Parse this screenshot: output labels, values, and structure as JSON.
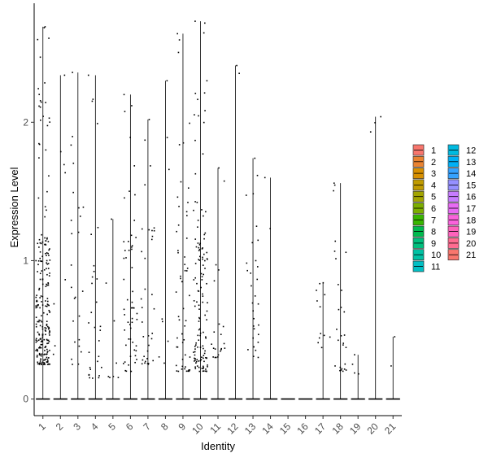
{
  "chart_data": {
    "type": "violin",
    "xlabel": "Identity",
    "ylabel": "Expression Level",
    "ylim": [
      -0.12,
      2.86
    ],
    "yticks": [
      0,
      1,
      2
    ],
    "categories": [
      "1",
      "2",
      "3",
      "4",
      "5",
      "6",
      "7",
      "8",
      "9",
      "10",
      "11",
      "12",
      "13",
      "14",
      "15",
      "16",
      "17",
      "18",
      "19",
      "20",
      "21"
    ],
    "max_values": [
      2.69,
      2.34,
      2.36,
      2.34,
      1.3,
      2.2,
      2.02,
      2.3,
      2.64,
      2.73,
      1.67,
      2.41,
      1.74,
      1.6,
      0.0,
      0.0,
      0.84,
      1.56,
      0.32,
      2.04,
      0.45
    ],
    "nonzero_counts": [
      230,
      8,
      25,
      30,
      8,
      55,
      35,
      8,
      55,
      130,
      22,
      2,
      30,
      2,
      0,
      0,
      12,
      28,
      4,
      3,
      2
    ],
    "dense_range": [
      [
        0.25,
        1.2
      ],
      [
        0.3,
        1.9
      ],
      [
        0.25,
        2.3
      ],
      [
        0.15,
        1.0
      ],
      [
        0.15,
        1.1
      ],
      [
        0.2,
        1.3
      ],
      [
        0.25,
        1.3
      ],
      [
        0.2,
        1.2
      ],
      [
        0.2,
        1.6
      ],
      [
        0.2,
        1.4
      ],
      [
        0.3,
        1.0
      ],
      [
        1.3,
        2.4
      ],
      [
        0.3,
        1.3
      ],
      [
        0.8,
        1.6
      ],
      [
        0,
        0
      ],
      [
        0,
        0
      ],
      [
        0.35,
        0.84
      ],
      [
        0.2,
        1.3
      ],
      [
        0.18,
        0.32
      ],
      [
        1.93,
        2.04
      ],
      [
        0.18,
        0.45
      ]
    ],
    "colors": [
      "#F8766D",
      "#EA8331",
      "#D89000",
      "#C09B00",
      "#A3A500",
      "#7CAE00",
      "#39B600",
      "#00BB4E",
      "#00BF7D",
      "#00C1A3",
      "#00BFC4",
      "#00BAE0",
      "#00B0F6",
      "#35A2FF",
      "#9590FF",
      "#C77CFF",
      "#E76BF3",
      "#FA62DB",
      "#FF62BC",
      "#FF6C91",
      "#F8766D"
    ],
    "legend": [
      "1",
      "2",
      "3",
      "4",
      "5",
      "6",
      "7",
      "8",
      "9",
      "10",
      "11",
      "12",
      "13",
      "14",
      "15",
      "16",
      "17",
      "18",
      "19",
      "20",
      "21"
    ],
    "legend_position": "right",
    "grid": false
  }
}
